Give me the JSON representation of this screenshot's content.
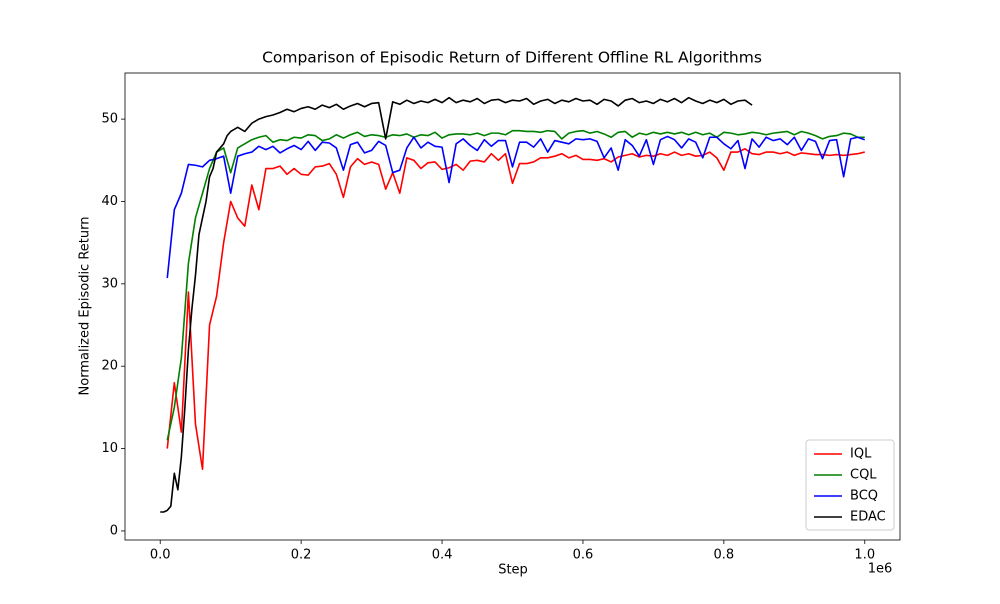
{
  "chart_data": {
    "type": "line",
    "title": "Comparison of Episodic Return of Different Offline RL Algorithms",
    "x_label": "Step",
    "y_label": "Normalized Episodic Return",
    "x_offset_label": "1e6",
    "xlim": [
      -0.05,
      1.05
    ],
    "ylim": [
      -1.1,
      55.6
    ],
    "xticks": [
      {
        "value": 0,
        "label": "0.0"
      },
      {
        "value": 0.2,
        "label": "0.2"
      },
      {
        "value": 0.4,
        "label": "0.4"
      },
      {
        "value": 0.6,
        "label": "0.6"
      },
      {
        "value": 0.8,
        "label": "0.8"
      },
      {
        "value": 1.0,
        "label": "1.0"
      }
    ],
    "yticks": [
      0,
      10,
      20,
      30,
      40,
      50
    ],
    "legend": "lower right",
    "grid": false,
    "x": [
      0.01,
      0.02,
      0.03,
      0.04,
      0.05,
      0.06,
      0.07,
      0.08,
      0.09,
      0.1,
      0.11,
      0.12,
      0.13,
      0.14,
      0.15,
      0.16,
      0.17,
      0.18,
      0.19,
      0.2,
      0.21,
      0.22,
      0.23,
      0.24,
      0.25,
      0.26,
      0.27,
      0.28,
      0.29,
      0.3,
      0.31,
      0.32,
      0.33,
      0.34,
      0.35,
      0.36,
      0.37,
      0.38,
      0.39,
      0.4,
      0.41,
      0.42,
      0.43,
      0.44,
      0.45,
      0.46,
      0.47,
      0.48,
      0.49,
      0.5,
      0.51,
      0.52,
      0.53,
      0.54,
      0.55,
      0.56,
      0.57,
      0.58,
      0.59,
      0.6,
      0.61,
      0.62,
      0.63,
      0.64,
      0.65,
      0.66,
      0.67,
      0.68,
      0.69,
      0.7,
      0.71,
      0.72,
      0.73,
      0.74,
      0.75,
      0.76,
      0.77,
      0.78,
      0.79,
      0.8,
      0.81,
      0.82,
      0.83,
      0.84,
      0.85,
      0.86,
      0.87,
      0.88,
      0.89,
      0.9,
      0.91,
      0.92,
      0.93,
      0.94,
      0.95,
      0.96,
      0.97,
      0.98,
      0.99,
      1.0
    ],
    "series": [
      {
        "name": "IQL",
        "color": "#ff0000",
        "values": [
          10,
          18,
          12,
          29,
          13,
          7.5,
          25,
          28.5,
          35,
          40,
          38,
          37,
          42,
          39,
          44,
          44,
          44.3,
          43.3,
          44,
          43.3,
          43.2,
          44.2,
          44.3,
          44.6,
          43.3,
          40.5,
          44.2,
          45.2,
          44.5,
          44.8,
          44.5,
          41.5,
          43.5,
          41,
          45.3,
          45,
          44,
          44.7,
          44.8,
          43.9,
          44.1,
          44.5,
          43.8,
          44.9,
          45,
          44.8,
          45.8,
          45,
          45.8,
          42.2,
          44.6,
          44.6,
          44.8,
          45.3,
          45.3,
          45.5,
          45.8,
          45.3,
          45.6,
          45.1,
          45.1,
          45,
          45.2,
          44.8,
          45.4,
          45.6,
          45.8,
          45.4,
          45.6,
          45.5,
          45.8,
          45.6,
          46,
          45.6,
          45.8,
          45.5,
          45.6,
          46,
          45.3,
          43.8,
          46,
          46,
          46.4,
          45.8,
          45.7,
          46,
          46,
          45.8,
          46,
          45.6,
          45.9,
          45.8,
          45.7,
          45.7,
          45.6,
          45.7,
          45.6,
          45.7,
          45.8,
          46
        ]
      },
      {
        "name": "CQL",
        "color": "#008000",
        "values": [
          11,
          15,
          21,
          32.5,
          38,
          41,
          44,
          46,
          46.5,
          43.5,
          46.5,
          47,
          47.5,
          47.8,
          48,
          47.2,
          47.5,
          47.4,
          47.8,
          47.7,
          48.1,
          48,
          47.4,
          47.6,
          48.1,
          47.7,
          48.1,
          48.4,
          47.9,
          48.1,
          48,
          47.8,
          48.1,
          48,
          48.2,
          47.8,
          48.1,
          48,
          48.4,
          47.7,
          48.1,
          48.2,
          48.2,
          48.1,
          48.3,
          48,
          48.3,
          48.3,
          48.1,
          48.6,
          48.6,
          48.5,
          48.5,
          48.4,
          48.6,
          48.5,
          47.6,
          48.3,
          48.5,
          48.6,
          48.3,
          48.5,
          48.2,
          47.8,
          48.4,
          48.5,
          47.8,
          48.3,
          48.1,
          48.4,
          48.2,
          48.4,
          48.2,
          48.4,
          48.1,
          48.4,
          48.1,
          48.3,
          47.8,
          48.4,
          48.3,
          48.1,
          48.2,
          48.4,
          48.3,
          48.1,
          48.3,
          48.4,
          48.5,
          48.1,
          48.5,
          48.3,
          48,
          47.6,
          47.9,
          48,
          48.3,
          48.2,
          47.8,
          47.8
        ]
      },
      {
        "name": "BCQ",
        "color": "#0000ff",
        "values": [
          30.7,
          39,
          41,
          44.5,
          44.4,
          44.2,
          45,
          45.2,
          45.5,
          41,
          45.5,
          45.8,
          46,
          46.7,
          46.3,
          46.7,
          45.9,
          46.4,
          46.8,
          46.3,
          47.3,
          46.2,
          47.2,
          47.1,
          46.5,
          43.8,
          46.9,
          47.2,
          45.9,
          46.2,
          47.3,
          46.8,
          43.5,
          43.8,
          46.5,
          47.8,
          46.5,
          47.2,
          46.7,
          46.6,
          42.3,
          47,
          47.6,
          46.8,
          46.2,
          47.5,
          46.7,
          47.4,
          47.4,
          44.2,
          47.2,
          47.2,
          46.6,
          47.6,
          46,
          47.4,
          47.2,
          47,
          47.6,
          47.5,
          47.6,
          47.3,
          45.3,
          46.5,
          43.8,
          47.5,
          46.8,
          45.5,
          47.5,
          44.5,
          47.5,
          47.9,
          47.5,
          46.5,
          47.6,
          47.2,
          45.3,
          47.8,
          47.8,
          47,
          46.4,
          47.4,
          44,
          47.6,
          46.6,
          47.8,
          47.4,
          47.6,
          46.9,
          47.8,
          46.2,
          47.6,
          47.3,
          45.2,
          47.4,
          47.5,
          43,
          47.6,
          47.8,
          47.5
        ]
      },
      {
        "name": "EDAC",
        "color": "#000000",
        "x": [
          0,
          0.005,
          0.01,
          0.015,
          0.02,
          0.025,
          0.03,
          0.035,
          0.04,
          0.045,
          0.05,
          0.055,
          0.06,
          0.065,
          0.07,
          0.075,
          0.08,
          0.085,
          0.09,
          0.095,
          0.1,
          0.11,
          0.12,
          0.13,
          0.14,
          0.15,
          0.16,
          0.17,
          0.18,
          0.19,
          0.2,
          0.21,
          0.22,
          0.23,
          0.24,
          0.25,
          0.26,
          0.27,
          0.28,
          0.29,
          0.3,
          0.31,
          0.32,
          0.33,
          0.34,
          0.35,
          0.36,
          0.37,
          0.38,
          0.39,
          0.4,
          0.41,
          0.42,
          0.43,
          0.44,
          0.45,
          0.46,
          0.47,
          0.48,
          0.49,
          0.5,
          0.51,
          0.52,
          0.53,
          0.54,
          0.55,
          0.56,
          0.57,
          0.58,
          0.59,
          0.6,
          0.61,
          0.62,
          0.63,
          0.64,
          0.65,
          0.66,
          0.67,
          0.68,
          0.69,
          0.7,
          0.71,
          0.72,
          0.73,
          0.74,
          0.75,
          0.76,
          0.77,
          0.78,
          0.79,
          0.8,
          0.81,
          0.82,
          0.83,
          0.84
        ],
        "values": [
          2.3,
          2.3,
          2.5,
          3,
          7,
          5,
          9,
          15,
          22,
          27,
          31,
          36,
          38,
          40,
          43,
          44,
          46,
          46.5,
          47,
          48,
          48.5,
          49,
          48.5,
          49.5,
          50,
          50.3,
          50.5,
          50.8,
          51.2,
          50.9,
          51.3,
          51.5,
          51.2,
          51.7,
          51.4,
          51.8,
          51.2,
          51.6,
          51.9,
          51.5,
          51.9,
          52,
          47.6,
          52.1,
          51.8,
          52.3,
          51.9,
          52.2,
          52,
          52.4,
          52,
          52.6,
          52,
          52.3,
          52.1,
          52.5,
          51.9,
          52.3,
          52.4,
          52,
          52.3,
          52.2,
          52.5,
          51.8,
          52.2,
          52.4,
          51.9,
          52.3,
          52.1,
          52.5,
          52.2,
          52.3,
          51.8,
          52.4,
          52.2,
          51.6,
          52.3,
          52.5,
          52,
          52.2,
          51.9,
          52.4,
          52.1,
          52.5,
          52,
          52.6,
          52.2,
          51.9,
          52.3,
          52,
          52.4,
          51.8,
          52.2,
          52.3,
          51.7
        ]
      }
    ]
  }
}
